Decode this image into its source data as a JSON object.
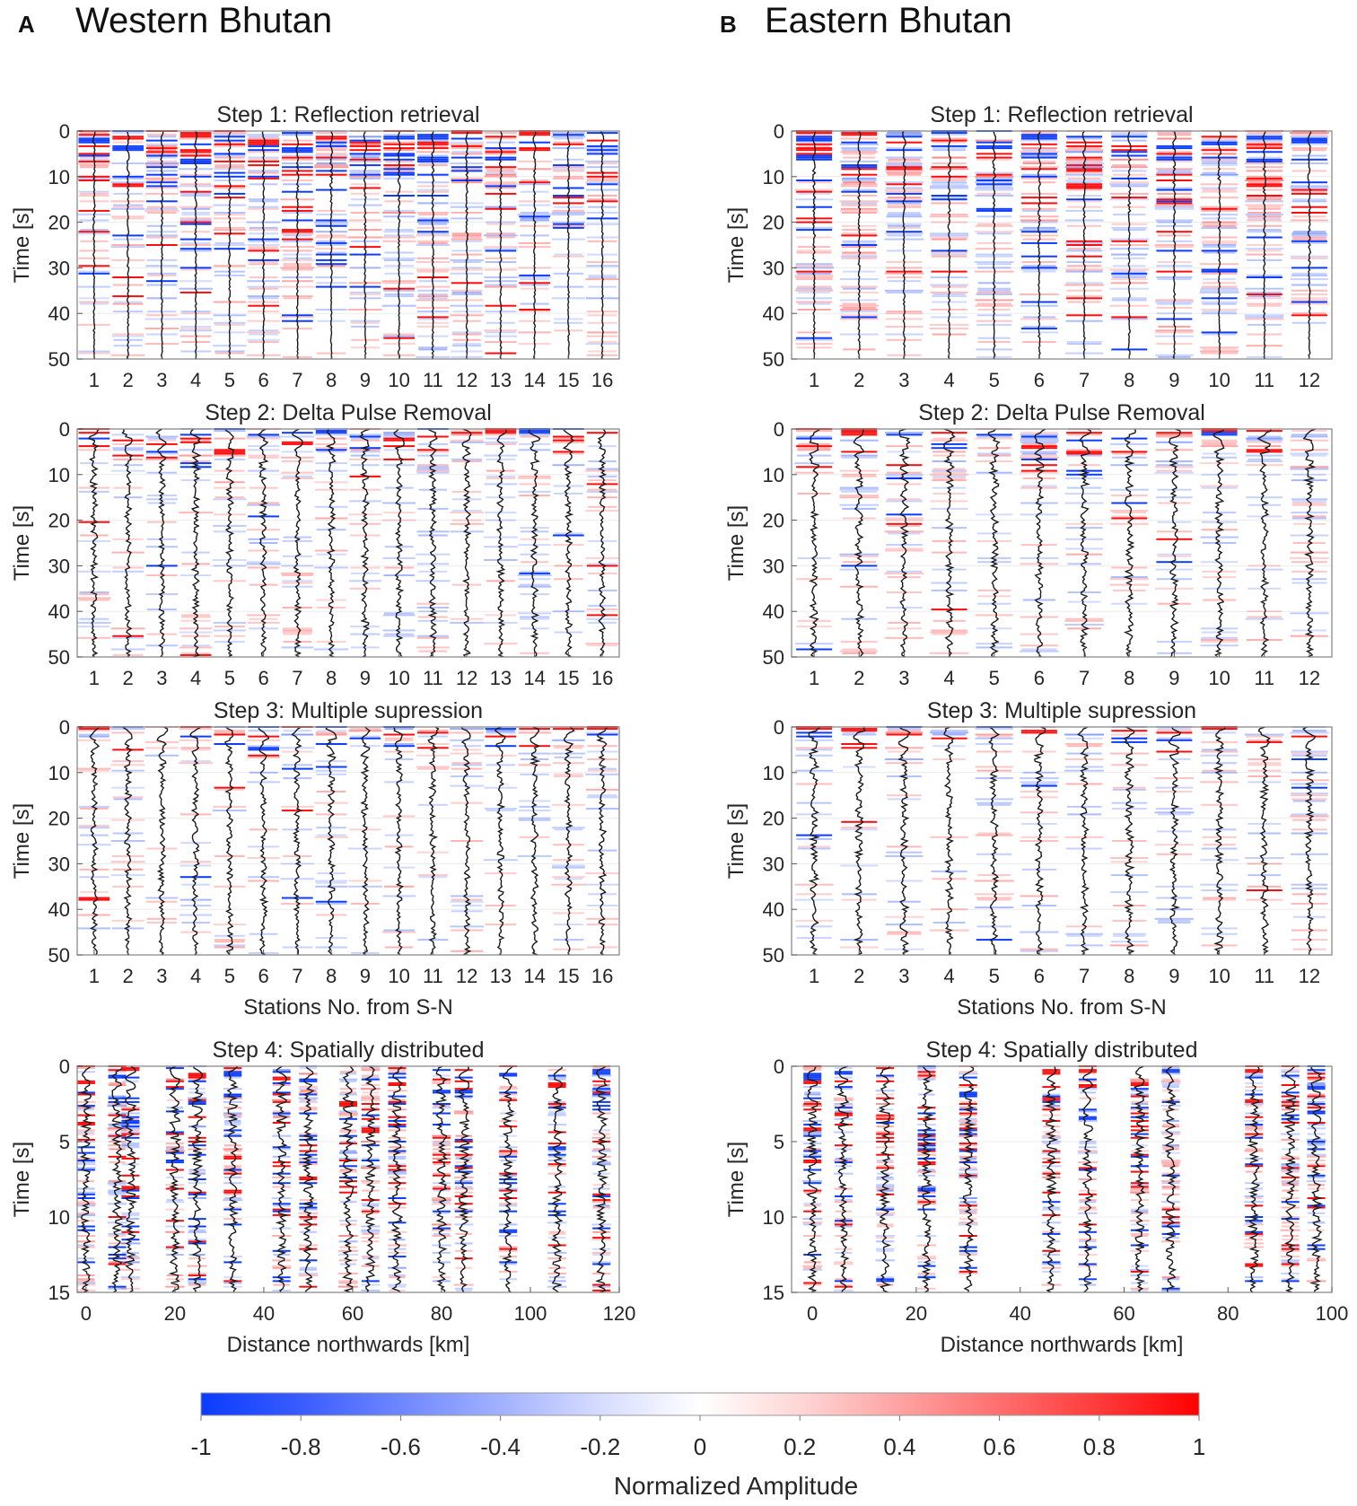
{
  "figure": {
    "panel_a": {
      "letter": "A",
      "title": "Western Bhutan"
    },
    "panel_b": {
      "letter": "B",
      "title": "Eastern Bhutan"
    },
    "colors": {
      "positive": "#ff0000",
      "negative": "#0033ff",
      "trace": "#1a1a1a",
      "frame": "#8a8a8a"
    }
  },
  "chart_data": [
    {
      "id": "A1",
      "type": "heatmap",
      "title": "Step 1: Reflection retrieval",
      "xlabel": "",
      "ylabel": "Time [s]",
      "x": [
        1,
        2,
        3,
        4,
        5,
        6,
        7,
        8,
        9,
        10,
        11,
        12,
        13,
        14,
        15,
        16
      ],
      "ylim": [
        0,
        50
      ],
      "yticks": [
        0,
        10,
        20,
        30,
        40,
        50
      ],
      "y_reversed": true,
      "seed": 11,
      "density": 0.3,
      "decay": 55,
      "wiggle": 0.08
    },
    {
      "id": "A2",
      "type": "heatmap",
      "title": "Step 2: Delta Pulse Removal",
      "xlabel": "",
      "ylabel": "Time [s]",
      "x": [
        1,
        2,
        3,
        4,
        5,
        6,
        7,
        8,
        9,
        10,
        11,
        12,
        13,
        14,
        15,
        16
      ],
      "ylim": [
        0,
        50
      ],
      "yticks": [
        0,
        10,
        20,
        30,
        40,
        50
      ],
      "y_reversed": true,
      "seed": 23,
      "density": 0.2,
      "decay": 14,
      "wiggle": 0.35
    },
    {
      "id": "A3",
      "type": "heatmap",
      "title": "Step 3: Multiple supression",
      "xlabel": "Stations No. from S-N",
      "ylabel": "Time [s]",
      "x": [
        1,
        2,
        3,
        4,
        5,
        6,
        7,
        8,
        9,
        10,
        11,
        12,
        13,
        14,
        15,
        16
      ],
      "ylim": [
        0,
        50
      ],
      "yticks": [
        0,
        10,
        20,
        30,
        40,
        50
      ],
      "y_reversed": true,
      "seed": 37,
      "density": 0.18,
      "decay": 11,
      "wiggle": 0.35
    },
    {
      "id": "A4",
      "type": "heatmap",
      "title": "Step 4: Spatially distributed",
      "xlabel": "Distance northwards [km]",
      "ylabel": "Time [s]",
      "x": [
        0,
        7,
        10,
        20,
        25,
        33,
        44,
        50,
        59,
        64,
        70,
        80,
        85,
        95,
        106,
        116
      ],
      "xlim": [
        -2,
        120
      ],
      "xticks": [
        0,
        20,
        40,
        60,
        80,
        100,
        120
      ],
      "ylim": [
        0,
        15
      ],
      "yticks": [
        0,
        5,
        10,
        15
      ],
      "y_reversed": true,
      "seed": 41,
      "density": 0.14,
      "decay": 50,
      "wiggle": 0.55
    },
    {
      "id": "B1",
      "type": "heatmap",
      "title": "Step 1: Reflection retrieval",
      "xlabel": "",
      "ylabel": "Time [s]",
      "x": [
        1,
        2,
        3,
        4,
        5,
        6,
        7,
        8,
        9,
        10,
        11,
        12
      ],
      "ylim": [
        0,
        50
      ],
      "yticks": [
        0,
        10,
        20,
        30,
        40,
        50
      ],
      "y_reversed": true,
      "seed": 53,
      "density": 0.36,
      "decay": 55,
      "wiggle": 0.08
    },
    {
      "id": "B2",
      "type": "heatmap",
      "title": "Step 2: Delta Pulse Removal",
      "xlabel": "",
      "ylabel": "Time [s]",
      "x": [
        1,
        2,
        3,
        4,
        5,
        6,
        7,
        8,
        9,
        10,
        11,
        12
      ],
      "ylim": [
        0,
        50
      ],
      "yticks": [
        0,
        10,
        20,
        30,
        40,
        50
      ],
      "y_reversed": true,
      "seed": 67,
      "density": 0.24,
      "decay": 16,
      "wiggle": 0.35
    },
    {
      "id": "B3",
      "type": "heatmap",
      "title": "Step 3: Multiple supression",
      "xlabel": "Stations No. from S-N",
      "ylabel": "Time [s]",
      "x": [
        1,
        2,
        3,
        4,
        5,
        6,
        7,
        8,
        9,
        10,
        11,
        12
      ],
      "ylim": [
        0,
        50
      ],
      "yticks": [
        0,
        10,
        20,
        30,
        40,
        50
      ],
      "y_reversed": true,
      "seed": 79,
      "density": 0.22,
      "decay": 13,
      "wiggle": 0.35
    },
    {
      "id": "B4",
      "type": "heatmap",
      "title": "Step 4: Spatially distributed",
      "xlabel": "Distance northwards [km]",
      "ylabel": "Time [s]",
      "x": [
        0,
        6,
        14,
        22,
        30,
        46,
        53,
        63,
        69,
        85,
        92,
        97
      ],
      "xlim": [
        -4,
        100
      ],
      "xticks": [
        0,
        20,
        40,
        60,
        80,
        100
      ],
      "ylim": [
        0,
        15
      ],
      "yticks": [
        0,
        5,
        10,
        15
      ],
      "y_reversed": true,
      "seed": 97,
      "density": 0.14,
      "decay": 50,
      "wiggle": 0.55
    }
  ],
  "colorbar": {
    "label": "Normalized Amplitude",
    "range": [
      -1,
      1
    ],
    "ticks": [
      -1,
      -0.8,
      -0.6,
      -0.4,
      -0.2,
      0,
      0.2,
      0.4,
      0.6,
      0.8,
      1
    ]
  }
}
